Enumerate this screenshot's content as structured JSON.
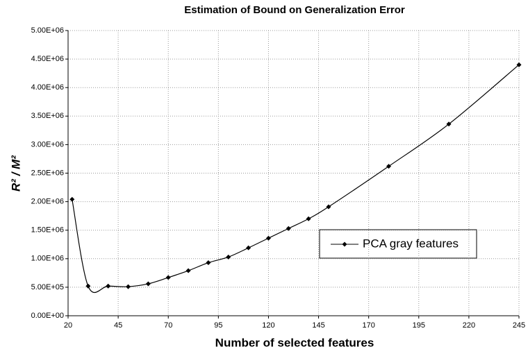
{
  "chart_data": {
    "type": "line",
    "title": "Estimation of Bound on Generalization Error",
    "x_label": "Number of selected features",
    "y_label": "R² / M²",
    "x": [
      22,
      30,
      40,
      50,
      60,
      70,
      80,
      90,
      100,
      110,
      120,
      130,
      140,
      150,
      180,
      210,
      245
    ],
    "series": [
      {
        "name": "PCA gray features",
        "color": "#000000",
        "values": [
          2040000,
          520000,
          520000,
          510000,
          560000,
          670000,
          790000,
          930000,
          1030000,
          1190000,
          1360000,
          1530000,
          1700000,
          1910000,
          2620000,
          3360000,
          4400000
        ]
      }
    ],
    "xlim": [
      20,
      245
    ],
    "xticks": [
      20,
      45,
      70,
      95,
      120,
      145,
      170,
      195,
      220,
      245
    ],
    "ylim": [
      0,
      5000000
    ],
    "yticks": [
      {
        "value": 0,
        "label": "0.00E+00"
      },
      {
        "value": 500000,
        "label": "5.00E+05"
      },
      {
        "value": 1000000,
        "label": "1.00E+06"
      },
      {
        "value": 1500000,
        "label": "1.50E+06"
      },
      {
        "value": 2000000,
        "label": "2.00E+06"
      },
      {
        "value": 2500000,
        "label": "2.50E+06"
      },
      {
        "value": 3000000,
        "label": "3.00E+06"
      },
      {
        "value": 3500000,
        "label": "3.50E+06"
      },
      {
        "value": 4000000,
        "label": "4.00E+06"
      },
      {
        "value": 4500000,
        "label": "4.50E+06"
      },
      {
        "value": 5000000,
        "label": "5.00E+06"
      }
    ],
    "grid": true,
    "smooth": true
  }
}
